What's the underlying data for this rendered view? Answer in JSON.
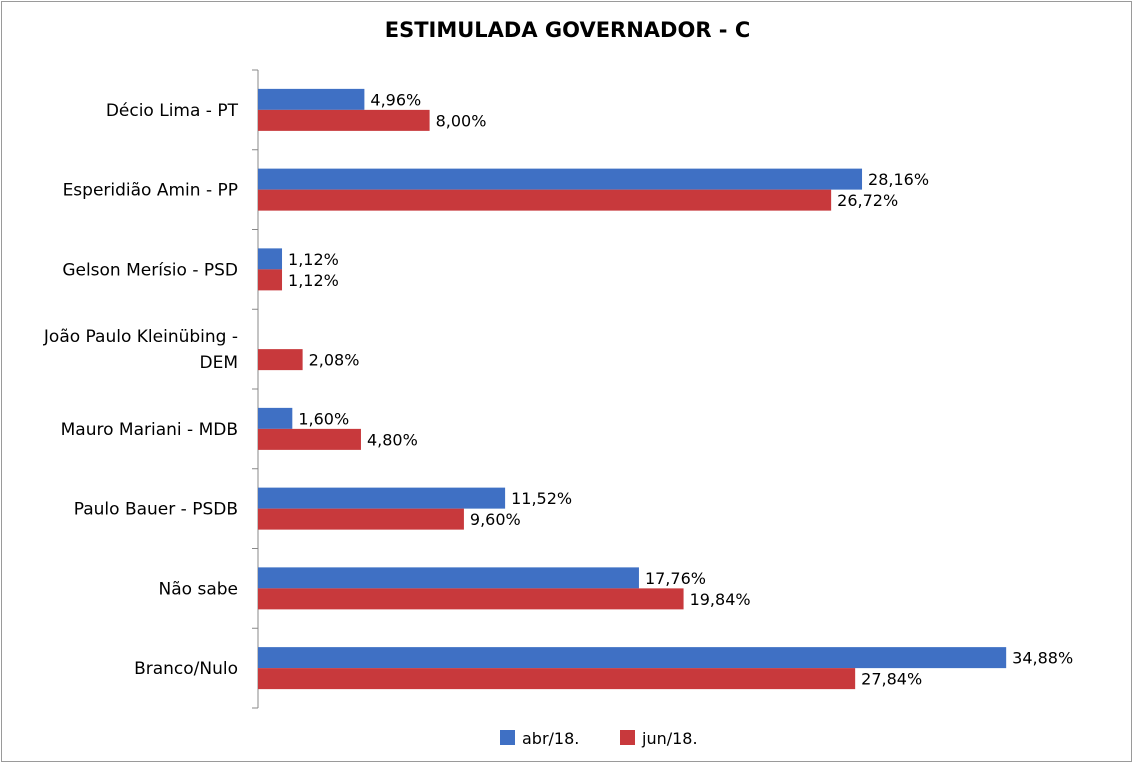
{
  "chart_data": {
    "type": "bar",
    "orientation": "horizontal",
    "title": "ESTIMULADA GOVERNADOR - C",
    "categories": [
      "Décio Lima - PT",
      "Esperidião Amin - PP",
      "Gelson Merísio - PSD",
      "João Paulo Kleinübing - DEM",
      "Mauro Mariani - MDB",
      "Paulo Bauer - PSDB",
      "Não sabe",
      "Branco/Nulo"
    ],
    "category_lines": [
      [
        "Décio Lima - PT"
      ],
      [
        "Esperidião Amin - PP"
      ],
      [
        "Gelson Merísio - PSD"
      ],
      [
        "João Paulo Kleinübing -",
        "DEM"
      ],
      [
        "Mauro Mariani - MDB"
      ],
      [
        "Paulo Bauer - PSDB"
      ],
      [
        "Não sabe"
      ],
      [
        "Branco/Nulo"
      ]
    ],
    "series": [
      {
        "name": "abr/18.",
        "color": "#3f70c4",
        "values": [
          4.96,
          28.16,
          1.12,
          null,
          1.6,
          11.52,
          17.76,
          34.88
        ],
        "labels": [
          "4,96%",
          "28,16%",
          "1,12%",
          "",
          "1,60%",
          "11,52%",
          "17,76%",
          "34,88%"
        ]
      },
      {
        "name": "jun/18.",
        "color": "#c8393c",
        "values": [
          8.0,
          26.72,
          1.12,
          2.08,
          4.8,
          9.6,
          19.84,
          27.84
        ],
        "labels": [
          "8,00%",
          "26,72%",
          "1,12%",
          "2,08%",
          "4,80%",
          "9,60%",
          "19,84%",
          "27,84%"
        ]
      }
    ],
    "xlim": [
      0,
      40
    ],
    "grid": false,
    "legend": "bottom"
  }
}
